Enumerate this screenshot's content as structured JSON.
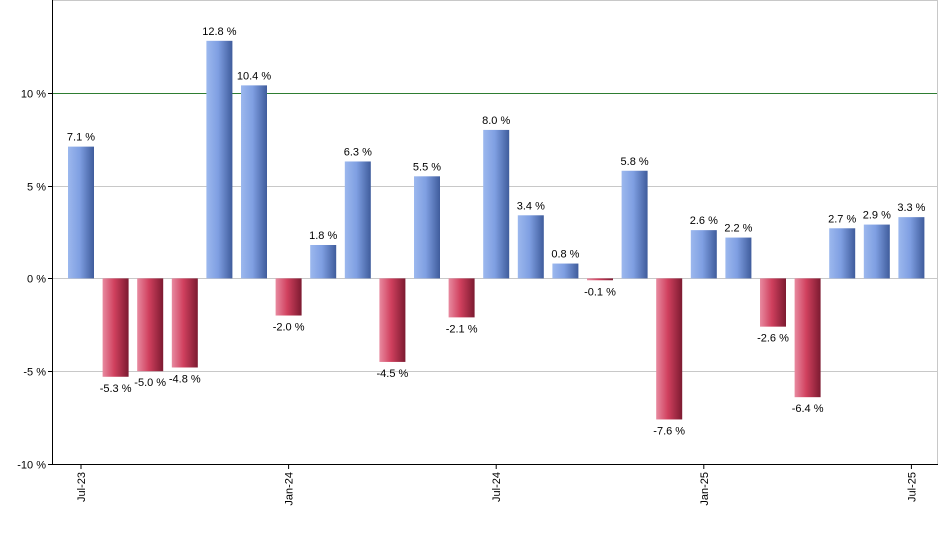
{
  "chart_data": {
    "type": "bar",
    "title": "",
    "xlabel": "",
    "ylabel": "",
    "ylim": [
      -10,
      15
    ],
    "yticks": [
      -10,
      -5,
      0,
      5,
      10
    ],
    "ytick_labels": [
      "-10 %",
      "-5 %",
      "0 %",
      "5 %",
      "10 %"
    ],
    "x_tick_labels": [
      {
        "label": "Jul-23",
        "index": 0
      },
      {
        "label": "Jan-24",
        "index": 6
      },
      {
        "label": "Jul-24",
        "index": 12
      },
      {
        "label": "Jan-25",
        "index": 18
      },
      {
        "label": "Jul-25",
        "index": 24
      }
    ],
    "values": [
      7.1,
      -5.3,
      -5.0,
      -4.8,
      12.8,
      10.4,
      -2.0,
      1.8,
      6.3,
      -4.5,
      5.5,
      -2.1,
      8.0,
      3.4,
      0.8,
      -0.1,
      5.8,
      -7.6,
      2.6,
      2.2,
      -2.6,
      -6.4,
      2.7,
      2.9,
      3.3
    ],
    "value_labels": [
      "7.1 %",
      "-5.3 %",
      "-5.0 %",
      "-4.8 %",
      "12.8 %",
      "10.4 %",
      "-2.0 %",
      "1.8 %",
      "6.3 %",
      "-4.5 %",
      "5.5 %",
      "-2.1 %",
      "8.0 %",
      "3.4 %",
      "0.8 %",
      "-0.1 %",
      "5.8 %",
      "-7.6 %",
      "2.6 %",
      "2.2 %",
      "-2.6 %",
      "-6.4 %",
      "2.7 %",
      "2.9 %",
      "3.3 %"
    ],
    "reference_line": 10,
    "grid": true,
    "colors": {
      "positive": "#7a9de0",
      "negative": "#d0405e",
      "reference_line": "#2e7d32",
      "grid": "#c8c8c8",
      "axis": "#000000"
    }
  }
}
